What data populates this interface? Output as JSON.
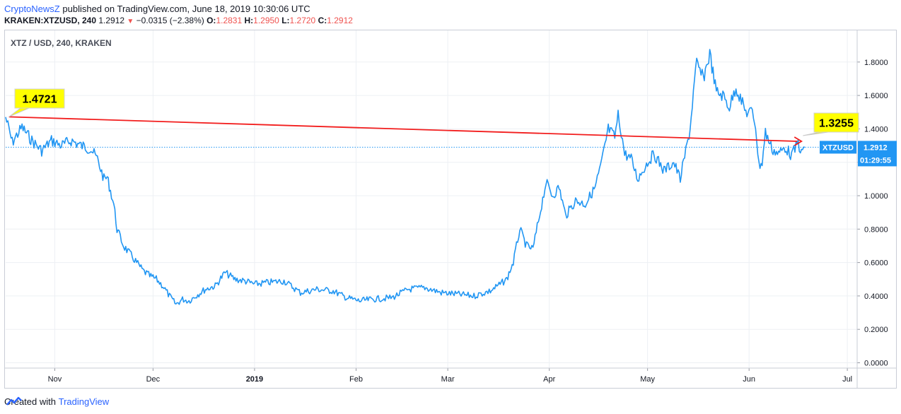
{
  "header": {
    "author": "CryptoNewsZ",
    "published_text": "published on TradingView.com, June 18, 2019 10:30:06 UTC"
  },
  "quote": {
    "symbol": "KRAKEN:XTZUSD, 240",
    "last": "1.2912",
    "change": "−0.0315 (−2.38%)",
    "open_label": "O:",
    "open": "1.2831",
    "high_label": "H:",
    "high": "1.2950",
    "low_label": "L:",
    "low": "1.2720",
    "close_label": "C:",
    "close": "1.2912"
  },
  "footer": {
    "created_with": "Created with",
    "brand": "TradingView"
  },
  "colors": {
    "line": "#2196f3",
    "trend": "#f21d1d",
    "callout": "#ffff00",
    "price_tag": "#2196f3",
    "grid": "#edf0f4"
  },
  "chart_data": {
    "type": "line",
    "title": "XTZ / USD, 240, KRAKEN",
    "symbol_tag": "XTZUSD",
    "price_tag": "1.2912",
    "countdown": "01:29:55",
    "x_ticks": [
      "Nov",
      "Dec",
      "2019",
      "Feb",
      "Mar",
      "Apr",
      "May",
      "Jun",
      "Jul"
    ],
    "y_ticks": [
      "1.8000",
      "1.6000",
      "1.4000",
      "1.2000",
      "1.0000",
      "0.8000",
      "0.6000",
      "0.4000",
      "0.2000",
      "0.0000"
    ],
    "ylim": [
      0,
      1.85
    ],
    "xlim": [
      "2018-10-17",
      "2019-07-04"
    ],
    "callouts": [
      "1.4721",
      "1.3255"
    ],
    "trendline": {
      "start": [
        "2018-10-18",
        1.4721
      ],
      "end": [
        "2019-06-17",
        1.3255
      ]
    },
    "series": [
      {
        "x": [
          "2018-10-17",
          "2018-10-19",
          "2018-10-22",
          "2018-10-25",
          "2018-10-28",
          "2018-10-31",
          "2018-11-03",
          "2018-11-06",
          "2018-11-09",
          "2018-11-12",
          "2018-11-14",
          "2018-11-16",
          "2018-11-17",
          "2018-11-19",
          "2018-11-20",
          "2018-11-22",
          "2018-11-24",
          "2018-11-26",
          "2018-11-28",
          "2018-11-30",
          "2018-12-02",
          "2018-12-04",
          "2018-12-06",
          "2018-12-08",
          "2018-12-10",
          "2018-12-12",
          "2018-12-14",
          "2018-12-17",
          "2018-12-20",
          "2018-12-23",
          "2018-12-26",
          "2018-12-29",
          "2019-01-01",
          "2019-01-05",
          "2019-01-10",
          "2019-01-15",
          "2019-01-20",
          "2019-01-25",
          "2019-01-29",
          "2019-02-02",
          "2019-02-06",
          "2019-02-12",
          "2019-02-17",
          "2019-02-22",
          "2019-02-27",
          "2019-03-04",
          "2019-03-09",
          "2019-03-14",
          "2019-03-17",
          "2019-03-19",
          "2019-03-21",
          "2019-03-23",
          "2019-03-25",
          "2019-03-27",
          "2019-03-29",
          "2019-03-31",
          "2019-04-02",
          "2019-04-04",
          "2019-04-06",
          "2019-04-09",
          "2019-04-12",
          "2019-04-15",
          "2019-04-17",
          "2019-04-19",
          "2019-04-21",
          "2019-04-22",
          "2019-04-23",
          "2019-04-24",
          "2019-04-26",
          "2019-04-28",
          "2019-05-01",
          "2019-05-03",
          "2019-05-06",
          "2019-05-09",
          "2019-05-11",
          "2019-05-13",
          "2019-05-14",
          "2019-05-15",
          "2019-05-16",
          "2019-05-18",
          "2019-05-20",
          "2019-05-22",
          "2019-05-24",
          "2019-05-26",
          "2019-05-28",
          "2019-05-31",
          "2019-06-02",
          "2019-06-03",
          "2019-06-04",
          "2019-06-05",
          "2019-06-06",
          "2019-06-08",
          "2019-06-10",
          "2019-06-12",
          "2019-06-14",
          "2019-06-16",
          "2019-06-17",
          "2019-06-18"
        ],
        "values": [
          1.47,
          1.32,
          1.41,
          1.33,
          1.27,
          1.33,
          1.3,
          1.33,
          1.3,
          1.28,
          1.22,
          1.1,
          1.11,
          0.95,
          0.8,
          0.7,
          0.65,
          0.6,
          0.55,
          0.52,
          0.5,
          0.46,
          0.4,
          0.35,
          0.38,
          0.37,
          0.4,
          0.44,
          0.46,
          0.54,
          0.5,
          0.49,
          0.47,
          0.48,
          0.49,
          0.42,
          0.44,
          0.43,
          0.39,
          0.37,
          0.38,
          0.39,
          0.44,
          0.45,
          0.42,
          0.41,
          0.4,
          0.43,
          0.47,
          0.5,
          0.6,
          0.8,
          0.7,
          0.68,
          0.88,
          1.08,
          1.0,
          1.05,
          0.88,
          0.97,
          0.95,
          1.05,
          1.2,
          1.4,
          1.35,
          1.48,
          1.38,
          1.25,
          1.22,
          1.1,
          1.2,
          1.25,
          1.15,
          1.2,
          1.1,
          1.3,
          1.4,
          1.62,
          1.79,
          1.7,
          1.85,
          1.62,
          1.6,
          1.53,
          1.65,
          1.5,
          1.5,
          1.42,
          1.18,
          1.2,
          1.38,
          1.28,
          1.25,
          1.29,
          1.24,
          1.32,
          1.25,
          1.29
        ]
      }
    ]
  }
}
